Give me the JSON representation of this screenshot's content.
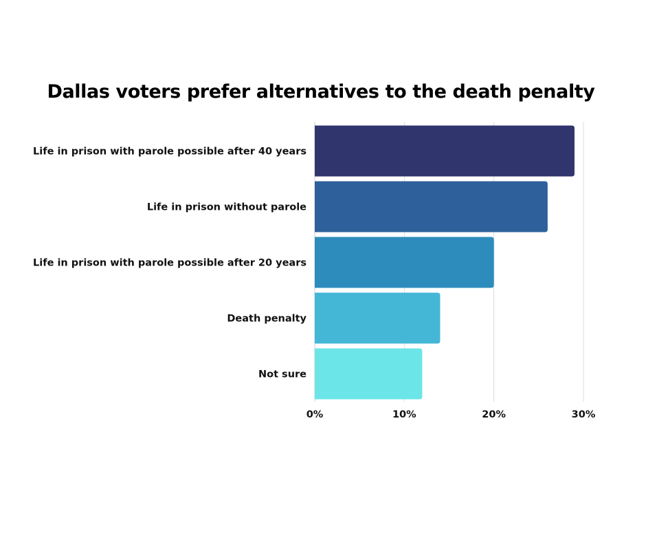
{
  "chart_data": {
    "type": "bar",
    "orientation": "horizontal",
    "title": "Dallas voters prefer alternatives to the death penalty",
    "xlabel": "",
    "ylabel": "",
    "categories": [
      "Life in prison with parole possible after 40 years",
      "Life in prison without parole",
      "Life in prison with parole possible after 20 years",
      "Death penalty",
      "Not sure"
    ],
    "values": [
      29,
      26,
      20,
      14,
      12
    ],
    "colors": [
      "#31356e",
      "#2e619b",
      "#2e8cbc",
      "#44b7d6",
      "#6ce5e8"
    ],
    "xlim": [
      0,
      30
    ],
    "x_ticks": [
      0,
      10,
      20,
      30
    ],
    "x_tick_labels": [
      "0%",
      "10%",
      "20%",
      "30%"
    ],
    "grid": true,
    "legend": "none"
  }
}
